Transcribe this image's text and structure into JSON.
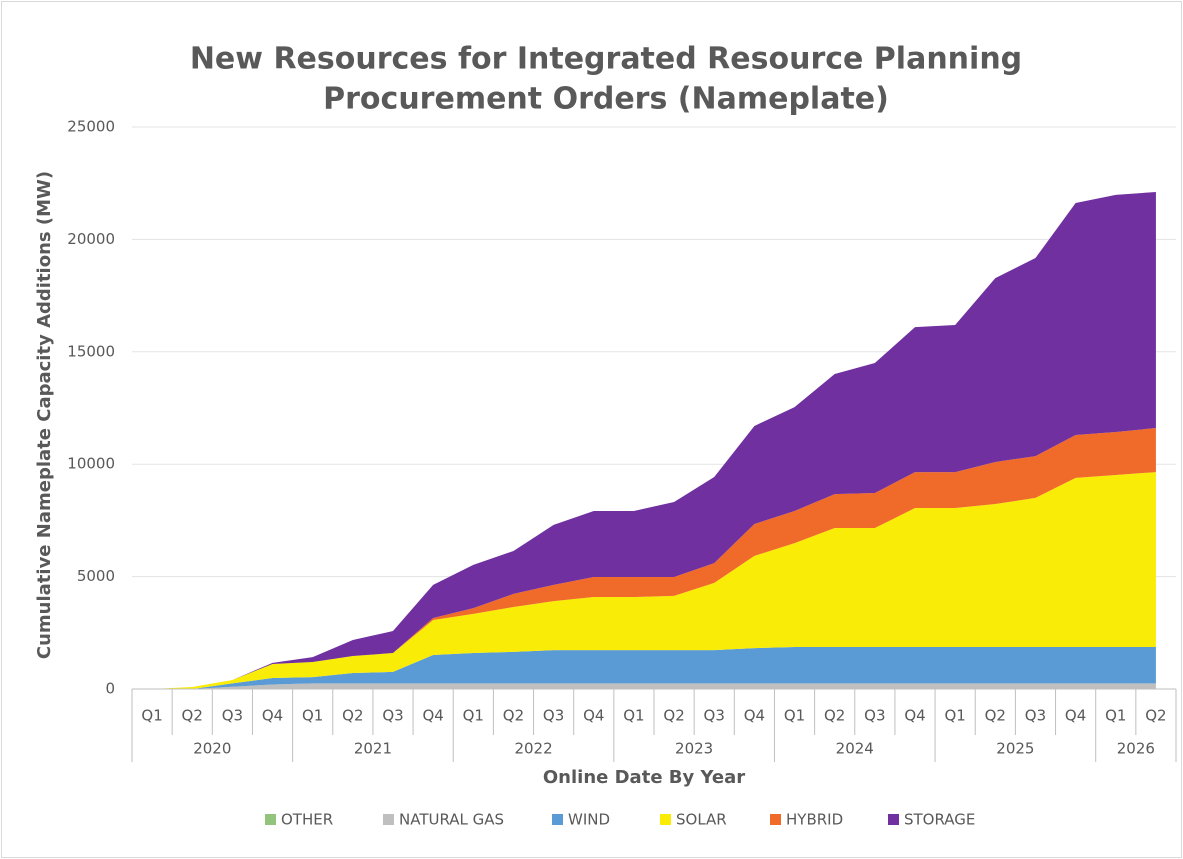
{
  "chart_data": {
    "type": "stacked_area",
    "title": [
      "New Resources for Integrated Resource Planning",
      "Procurement Orders (Nameplate)"
    ],
    "y_label": "Cumulative Nameplate Capacity Additions (MW)",
    "x_label": "Online Date By Year",
    "categories": [
      "Q1",
      "Q2",
      "Q3",
      "Q4",
      "Q1",
      "Q2",
      "Q3",
      "Q4",
      "Q1",
      "Q2",
      "Q3",
      "Q4",
      "Q1",
      "Q2",
      "Q3",
      "Q4",
      "Q1",
      "Q2",
      "Q3",
      "Q4",
      "Q1",
      "Q2",
      "Q3",
      "Q4",
      "Q1",
      "Q2"
    ],
    "groups": [
      {
        "label": "2020",
        "count": 4
      },
      {
        "label": "2021",
        "count": 4
      },
      {
        "label": "2022",
        "count": 4
      },
      {
        "label": "2023",
        "count": 4
      },
      {
        "label": "2024",
        "count": 4
      },
      {
        "label": "2025",
        "count": 4
      },
      {
        "label": "2026",
        "count": 2
      }
    ],
    "ylim": [
      0,
      25000
    ],
    "yticks": [
      0,
      5000,
      10000,
      15000,
      20000,
      25000
    ],
    "grid": true,
    "series": [
      {
        "name": "OTHER",
        "color": "#92c47d",
        "values": [
          0,
          0,
          0,
          0,
          0,
          0,
          0,
          0,
          0,
          0,
          0,
          0,
          0,
          0,
          0,
          0,
          0,
          0,
          0,
          0,
          0,
          0,
          0,
          0,
          0,
          0
        ]
      },
      {
        "name": "NATURAL GAS",
        "color": "#bfbfbf",
        "values": [
          0,
          0,
          100,
          200,
          250,
          250,
          250,
          250,
          250,
          250,
          250,
          250,
          250,
          250,
          250,
          250,
          250,
          250,
          250,
          250,
          250,
          250,
          250,
          250,
          250,
          250
        ]
      },
      {
        "name": "WIND",
        "color": "#5b9bd5",
        "values": [
          0,
          0,
          150,
          290,
          280,
          460,
          510,
          1260,
          1350,
          1400,
          1480,
          1480,
          1480,
          1480,
          1480,
          1570,
          1620,
          1620,
          1620,
          1620,
          1620,
          1620,
          1620,
          1620,
          1620,
          1620
        ]
      },
      {
        "name": "SOLAR",
        "color": "#f9ec06",
        "values": [
          0,
          90,
          150,
          620,
          670,
          760,
          840,
          1560,
          1740,
          2000,
          2180,
          2360,
          2360,
          2410,
          2990,
          4100,
          4620,
          5290,
          5290,
          6180,
          6180,
          6360,
          6630,
          7520,
          7650,
          7780
        ]
      },
      {
        "name": "HYBRID",
        "color": "#f06a2a",
        "values": [
          0,
          0,
          0,
          0,
          0,
          0,
          0,
          90,
          260,
          580,
          720,
          890,
          890,
          840,
          880,
          1420,
          1430,
          1510,
          1560,
          1600,
          1600,
          1870,
          1860,
          1910,
          1910,
          1960
        ]
      },
      {
        "name": "STORAGE",
        "color": "#7030a0",
        "values": [
          0,
          0,
          0,
          50,
          220,
          710,
          980,
          1470,
          1920,
          1910,
          2670,
          2940,
          2940,
          3340,
          3830,
          4360,
          4620,
          5340,
          5780,
          6450,
          6540,
          8180,
          8810,
          10320,
          10550,
          10500
        ]
      }
    ]
  }
}
